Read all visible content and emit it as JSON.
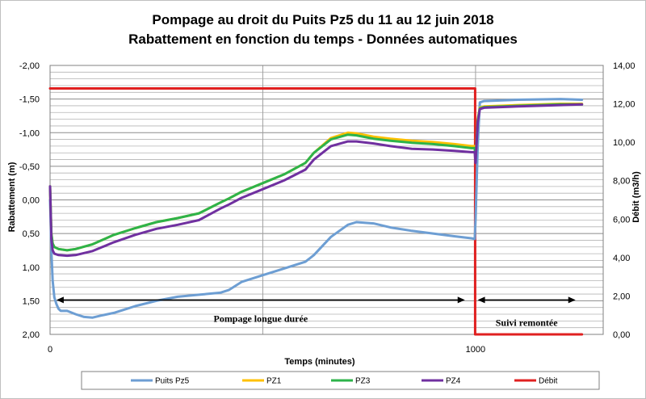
{
  "chart_data": {
    "type": "line",
    "title_line1": "Pompage au droit du Puits Pz5 du 11 au 12 juin 2018",
    "title_line2": "Rabattement en fonction du temps - Données automatiques",
    "xlabel": "Temps (minutes)",
    "ylabel": "Rabattement (m)",
    "y2label": "Débit (m3/h)",
    "xlim": [
      0,
      1300
    ],
    "ylim": [
      2.0,
      -2.0
    ],
    "y_reversed": true,
    "y2lim": [
      0,
      14
    ],
    "x_ticks": [
      "0",
      "1000"
    ],
    "x_tick_values": [
      0,
      1000
    ],
    "y_ticks": [
      "-2,00",
      "-1,50",
      "-1,00",
      "-0,50",
      "0,00",
      "0,50",
      "1,00",
      "1,50",
      "2,00"
    ],
    "y_tick_values": [
      -2.0,
      -1.5,
      -1.0,
      -0.5,
      0.0,
      0.5,
      1.0,
      1.5,
      2.0
    ],
    "y2_ticks": [
      "0,00",
      "2,00",
      "4,00",
      "6,00",
      "8,00",
      "10,00",
      "12,00",
      "14,00"
    ],
    "y2_tick_values": [
      0,
      2,
      4,
      6,
      8,
      10,
      12,
      14
    ],
    "grid": true,
    "legend_position": "bottom",
    "series": [
      {
        "name": "Puits Pz5",
        "axis": "left",
        "color": "#6d9ed3",
        "x": [
          0,
          3,
          6,
          10,
          15,
          20,
          25,
          40,
          60,
          80,
          100,
          120,
          150,
          180,
          200,
          250,
          300,
          350,
          400,
          420,
          450,
          500,
          550,
          600,
          620,
          660,
          700,
          720,
          760,
          800,
          850,
          900,
          950,
          990,
          998,
          1000,
          1005,
          1010,
          1020,
          1100,
          1200,
          1250
        ],
        "y": [
          0.0,
          0.75,
          1.2,
          1.45,
          1.55,
          1.62,
          1.65,
          1.65,
          1.7,
          1.74,
          1.75,
          1.72,
          1.68,
          1.62,
          1.58,
          1.5,
          1.44,
          1.41,
          1.38,
          1.34,
          1.22,
          1.12,
          1.02,
          0.92,
          0.82,
          0.55,
          0.37,
          0.33,
          0.35,
          0.41,
          0.46,
          0.5,
          0.54,
          0.57,
          0.58,
          0.3,
          -0.8,
          -1.45,
          -1.47,
          -1.49,
          -1.5,
          -1.49
        ]
      },
      {
        "name": "PZ1",
        "axis": "left",
        "color": "#ffc000",
        "x": [
          0,
          3,
          6,
          10,
          20,
          40,
          60,
          100,
          150,
          200,
          250,
          300,
          350,
          400,
          420,
          450,
          500,
          550,
          600,
          620,
          660,
          700,
          720,
          760,
          800,
          850,
          900,
          950,
          990,
          998,
          1000,
          1005,
          1010,
          1020,
          1100,
          1200,
          1250
        ],
        "y": [
          -0.2,
          0.5,
          0.65,
          0.7,
          0.73,
          0.75,
          0.73,
          0.66,
          0.52,
          0.42,
          0.33,
          0.27,
          0.2,
          0.04,
          -0.02,
          -0.12,
          -0.25,
          -0.38,
          -0.55,
          -0.7,
          -0.92,
          -1.0,
          -0.99,
          -0.94,
          -0.91,
          -0.88,
          -0.86,
          -0.83,
          -0.8,
          -0.8,
          -0.6,
          -1.2,
          -1.37,
          -1.39,
          -1.41,
          -1.43,
          -1.43
        ]
      },
      {
        "name": "PZ3",
        "axis": "left",
        "color": "#2db34a",
        "x": [
          0,
          3,
          6,
          10,
          20,
          40,
          60,
          100,
          150,
          200,
          250,
          300,
          350,
          400,
          420,
          450,
          500,
          550,
          600,
          620,
          660,
          700,
          720,
          760,
          800,
          850,
          900,
          950,
          990,
          998,
          1000,
          1005,
          1010,
          1020,
          1100,
          1200,
          1250
        ],
        "y": [
          -0.2,
          0.5,
          0.65,
          0.7,
          0.73,
          0.75,
          0.73,
          0.66,
          0.52,
          0.42,
          0.33,
          0.27,
          0.2,
          0.04,
          -0.02,
          -0.12,
          -0.25,
          -0.38,
          -0.55,
          -0.7,
          -0.9,
          -0.97,
          -0.96,
          -0.91,
          -0.88,
          -0.85,
          -0.83,
          -0.8,
          -0.77,
          -0.77,
          -0.6,
          -1.18,
          -1.36,
          -1.38,
          -1.4,
          -1.42,
          -1.42
        ]
      },
      {
        "name": "PZ4",
        "axis": "left",
        "color": "#7030a0",
        "x": [
          0,
          3,
          6,
          10,
          20,
          40,
          60,
          100,
          150,
          200,
          250,
          300,
          350,
          400,
          420,
          450,
          500,
          550,
          600,
          620,
          660,
          700,
          720,
          760,
          800,
          850,
          900,
          950,
          990,
          998,
          1000,
          1005,
          1010,
          1020,
          1100,
          1200,
          1250
        ],
        "y": [
          -0.2,
          0.58,
          0.75,
          0.8,
          0.82,
          0.83,
          0.82,
          0.76,
          0.63,
          0.52,
          0.43,
          0.37,
          0.3,
          0.13,
          0.07,
          -0.03,
          -0.16,
          -0.29,
          -0.45,
          -0.6,
          -0.8,
          -0.87,
          -0.87,
          -0.84,
          -0.8,
          -0.76,
          -0.75,
          -0.73,
          -0.71,
          -0.71,
          -0.55,
          -1.15,
          -1.35,
          -1.37,
          -1.39,
          -1.41,
          -1.42
        ]
      },
      {
        "name": "Débit",
        "axis": "right",
        "color": "#e02020",
        "x": [
          0,
          999,
          999,
          1250
        ],
        "y": [
          12.8,
          12.8,
          0.0,
          0.0
        ]
      }
    ],
    "annotations": [
      {
        "text": "Pompage longue durée",
        "from_x": 15,
        "to_x": 975,
        "y": 1.5
      },
      {
        "text": "Suivi remontée",
        "from_x": 1005,
        "to_x": 1235,
        "y": 1.5
      }
    ]
  }
}
